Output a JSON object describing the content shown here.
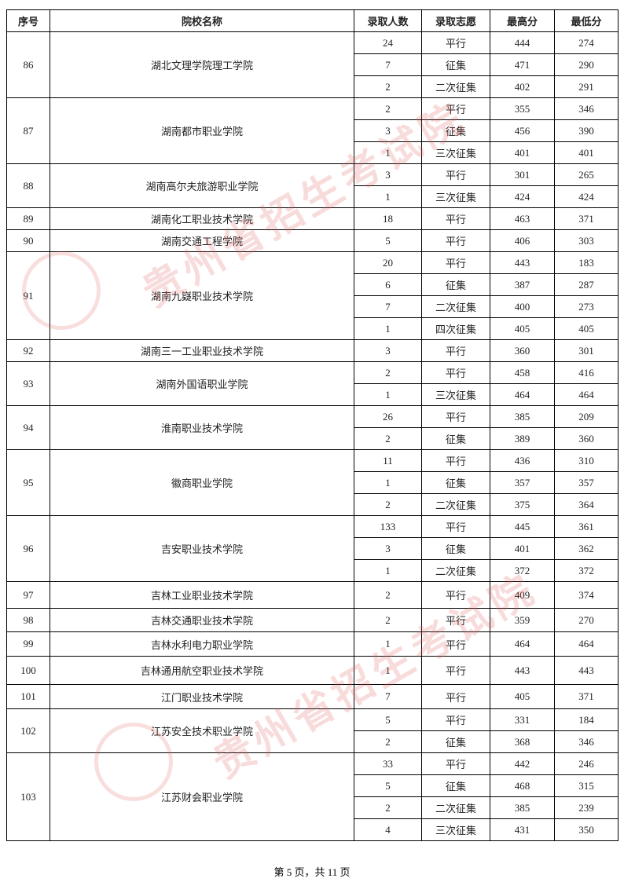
{
  "table": {
    "headers": [
      "序号",
      "院校名称",
      "录取人数",
      "录取志愿",
      "最高分",
      "最低分"
    ],
    "schools": [
      {
        "id": 86,
        "name": "湖北文理学院理工学院",
        "rows": [
          [
            24,
            "平行",
            444,
            274
          ],
          [
            7,
            "征集",
            471,
            290
          ],
          [
            2,
            "二次征集",
            402,
            291
          ]
        ]
      },
      {
        "id": 87,
        "name": "湖南都市职业学院",
        "rows": [
          [
            2,
            "平行",
            355,
            346
          ],
          [
            3,
            "征集",
            456,
            390
          ],
          [
            1,
            "三次征集",
            401,
            401
          ]
        ]
      },
      {
        "id": 88,
        "name": "湖南高尔夫旅游职业学院",
        "rows": [
          [
            3,
            "平行",
            301,
            265
          ],
          [
            1,
            "三次征集",
            424,
            424
          ]
        ]
      },
      {
        "id": 89,
        "name": "湖南化工职业技术学院",
        "rows": [
          [
            18,
            "平行",
            463,
            371
          ]
        ]
      },
      {
        "id": 90,
        "name": "湖南交通工程学院",
        "rows": [
          [
            5,
            "平行",
            406,
            303
          ]
        ]
      },
      {
        "id": 91,
        "name": "湖南九嶷职业技术学院",
        "rows": [
          [
            20,
            "平行",
            443,
            183
          ],
          [
            6,
            "征集",
            387,
            287
          ],
          [
            7,
            "二次征集",
            400,
            273
          ],
          [
            1,
            "四次征集",
            405,
            405
          ]
        ]
      },
      {
        "id": 92,
        "name": "湖南三一工业职业技术学院",
        "rows": [
          [
            3,
            "平行",
            360,
            301
          ]
        ]
      },
      {
        "id": 93,
        "name": "湖南外国语职业学院",
        "rows": [
          [
            2,
            "平行",
            458,
            416
          ],
          [
            1,
            "三次征集",
            464,
            464
          ]
        ]
      },
      {
        "id": 94,
        "name": "淮南职业技术学院",
        "rows": [
          [
            26,
            "平行",
            385,
            209
          ],
          [
            2,
            "征集",
            389,
            360
          ]
        ]
      },
      {
        "id": 95,
        "name": "徽商职业学院",
        "rows": [
          [
            11,
            "平行",
            436,
            310
          ],
          [
            1,
            "征集",
            357,
            357
          ],
          [
            2,
            "二次征集",
            375,
            364
          ]
        ]
      },
      {
        "id": 96,
        "name": "吉安职业技术学院",
        "rows": [
          [
            133,
            "平行",
            445,
            361
          ],
          [
            3,
            "征集",
            401,
            362
          ],
          [
            1,
            "二次征集",
            372,
            372
          ]
        ]
      },
      {
        "id": 97,
        "name": "吉林工业职业技术学院",
        "rows": [
          [
            2,
            "平行",
            409,
            374
          ]
        ]
      },
      {
        "id": 98,
        "name": "吉林交通职业技术学院",
        "rows": [
          [
            2,
            "平行",
            359,
            270
          ]
        ]
      },
      {
        "id": 99,
        "name": "吉林水利电力职业学院",
        "rows": [
          [
            1,
            "平行",
            464,
            464
          ]
        ]
      },
      {
        "id": 100,
        "name": "吉林通用航空职业技术学院",
        "rows": [
          [
            1,
            "平行",
            443,
            443
          ]
        ]
      },
      {
        "id": 101,
        "name": "江门职业技术学院",
        "rows": [
          [
            7,
            "平行",
            405,
            371
          ]
        ]
      },
      {
        "id": 102,
        "name": "江苏安全技术职业学院",
        "rows": [
          [
            5,
            "平行",
            331,
            184
          ],
          [
            2,
            "征集",
            368,
            346
          ]
        ]
      },
      {
        "id": 103,
        "name": "江苏财会职业学院",
        "rows": [
          [
            33,
            "平行",
            442,
            246
          ],
          [
            5,
            "征集",
            468,
            315
          ],
          [
            2,
            "二次征集",
            385,
            239
          ],
          [
            4,
            "三次征集",
            431,
            350
          ]
        ]
      }
    ]
  },
  "watermark": "贵州省招生考试院",
  "footer": "第 5 页，共 11 页"
}
